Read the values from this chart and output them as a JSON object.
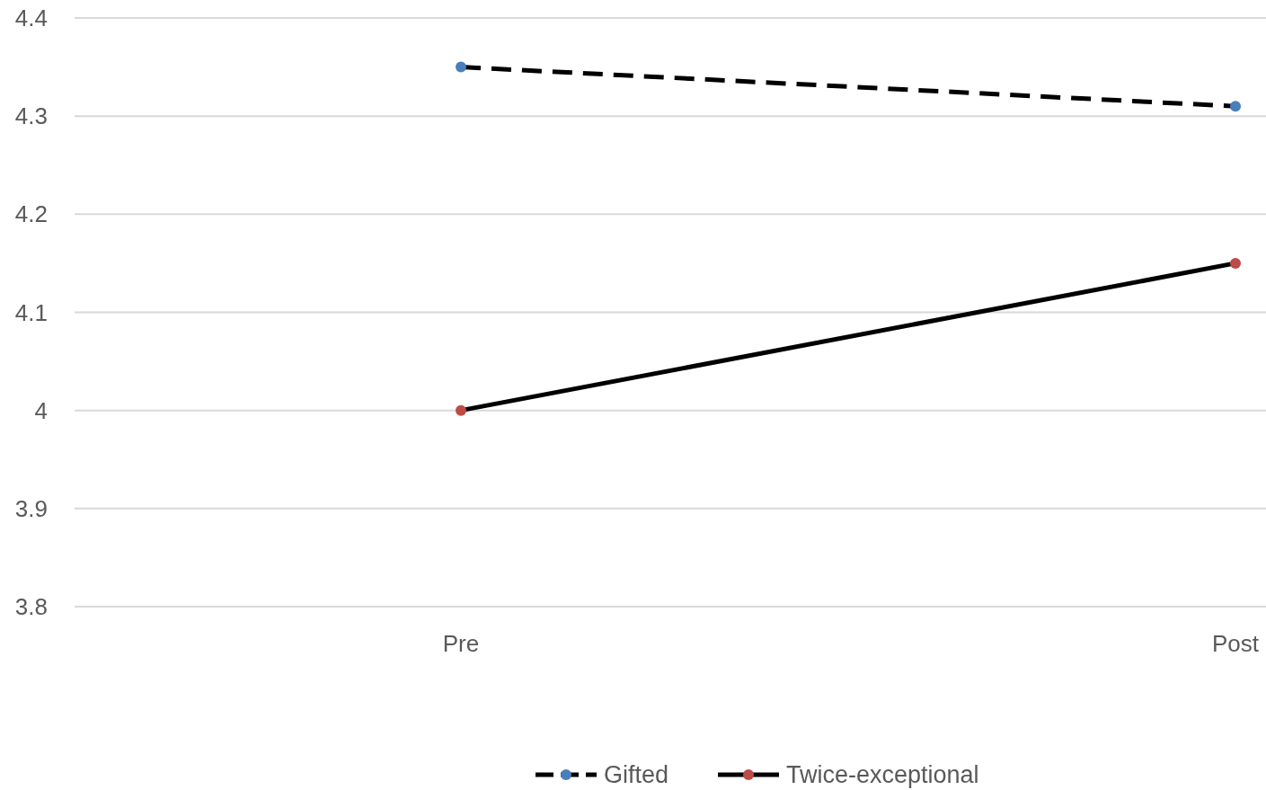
{
  "chart_data": {
    "type": "line",
    "categories": [
      "Pre",
      "Post"
    ],
    "series": [
      {
        "name": "Gifted",
        "color": "#000000",
        "colors": [
          "#4a7ebb",
          "#4a7ebb"
        ],
        "line_style": "dashed",
        "values": [
          4.35,
          4.31
        ]
      },
      {
        "name": "Twice-exceptional",
        "color": "#000000",
        "colors": [
          "#be4b48",
          "#be4b48"
        ],
        "line_style": "solid",
        "values": [
          4.0,
          4.15
        ]
      }
    ],
    "ylim": [
      3.8,
      4.4
    ],
    "yticks": [
      3.8,
      3.9,
      4,
      4.1,
      4.2,
      4.3,
      4.4
    ],
    "grid": "y",
    "legend": "bottom",
    "marker": "circle"
  }
}
